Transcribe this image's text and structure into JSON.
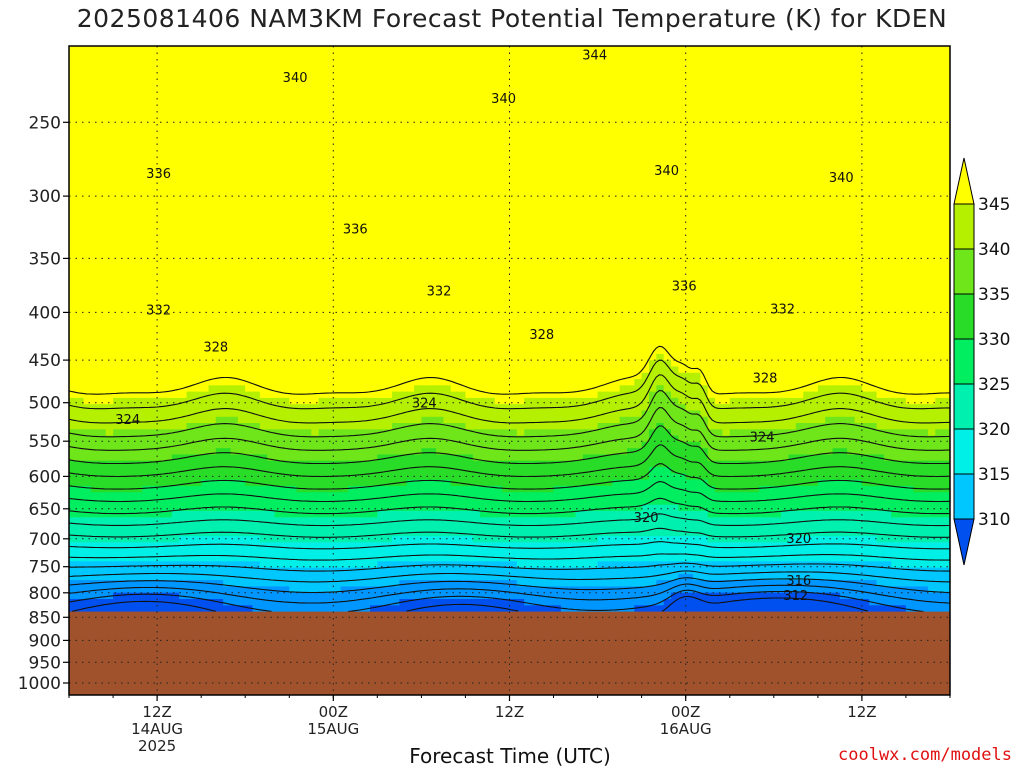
{
  "title": "2025081406 NAM3KM Forecast Potential Temperature (K) for KDEN",
  "credit": "coolwx.com/models",
  "chart_data": {
    "type": "heatmap",
    "title": "2025081406 NAM3KM Forecast Potential Temperature (K) for KDEN",
    "xlabel": "Forecast Time (UTC)",
    "ylabel": "",
    "y_scale": "log-pressure",
    "y_reversed": true,
    "yticks": [
      250,
      300,
      350,
      400,
      450,
      500,
      550,
      600,
      650,
      700,
      750,
      800,
      850,
      900,
      950,
      1000
    ],
    "ylim": [
      1030,
      207
    ],
    "xlim_hours_from_start": [
      0,
      60
    ],
    "xticks": [
      {
        "hour": 6,
        "labels": [
          "12Z",
          "14AUG",
          "2025"
        ]
      },
      {
        "hour": 18,
        "labels": [
          "00Z",
          "15AUG"
        ]
      },
      {
        "hour": 30,
        "labels": [
          "12Z"
        ]
      },
      {
        "hour": 42,
        "labels": [
          "00Z",
          "16AUG"
        ]
      },
      {
        "hour": 54,
        "labels": [
          "12Z"
        ]
      }
    ],
    "ground_pressure": 838,
    "colorbar": {
      "levels": [
        310,
        315,
        320,
        325,
        330,
        335,
        340,
        345
      ],
      "colors": [
        "#0050f0",
        "#0096ff",
        "#00c8ff",
        "#00f0e8",
        "#00f0b0",
        "#00ee60",
        "#28dc28",
        "#6ee61a",
        "#b4f000",
        "#ffff00"
      ],
      "extend": "both"
    },
    "contour_interval": 2,
    "contour_labels": [
      {
        "text": "344",
        "hour": 35.8,
        "p": 212
      },
      {
        "text": "340",
        "hour": 15.4,
        "p": 224
      },
      {
        "text": "340",
        "hour": 29.6,
        "p": 236
      },
      {
        "text": "340",
        "hour": 40.7,
        "p": 282
      },
      {
        "text": "340",
        "hour": 52.6,
        "p": 287
      },
      {
        "text": "336",
        "hour": 6.1,
        "p": 284
      },
      {
        "text": "336",
        "hour": 19.5,
        "p": 326
      },
      {
        "text": "336",
        "hour": 41.9,
        "p": 375
      },
      {
        "text": "332",
        "hour": 6.1,
        "p": 398
      },
      {
        "text": "332",
        "hour": 25.2,
        "p": 380
      },
      {
        "text": "332",
        "hour": 48.6,
        "p": 397
      },
      {
        "text": "328",
        "hour": 10.0,
        "p": 436
      },
      {
        "text": "328",
        "hour": 32.2,
        "p": 423
      },
      {
        "text": "328",
        "hour": 47.4,
        "p": 471
      },
      {
        "text": "324",
        "hour": 4.0,
        "p": 522
      },
      {
        "text": "324",
        "hour": 24.2,
        "p": 501
      },
      {
        "text": "324",
        "hour": 47.2,
        "p": 545
      },
      {
        "text": "320",
        "hour": 39.3,
        "p": 665
      },
      {
        "text": "320",
        "hour": 49.7,
        "p": 700
      },
      {
        "text": "316",
        "hour": 49.7,
        "p": 777
      },
      {
        "text": "312",
        "hour": 49.5,
        "p": 806
      }
    ]
  }
}
